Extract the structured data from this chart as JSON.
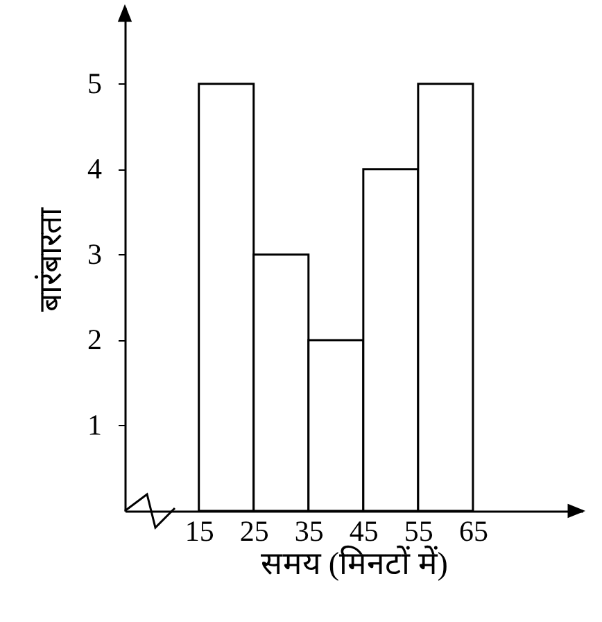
{
  "chart_data": {
    "type": "histogram",
    "xlabel": "समय (मिनटों में)",
    "ylabel": "बारंबारता",
    "bins": [
      15,
      25,
      35,
      45,
      55,
      65
    ],
    "values": [
      5,
      3,
      2,
      4,
      5
    ],
    "color": "#ffffff",
    "xlim": [
      1.5,
      85
    ],
    "xticks": [
      15,
      25,
      35,
      45,
      55,
      65
    ],
    "ylim": [
      0,
      5.9
    ],
    "yticks": [
      1,
      2,
      3,
      4,
      5
    ],
    "grid": false
  }
}
